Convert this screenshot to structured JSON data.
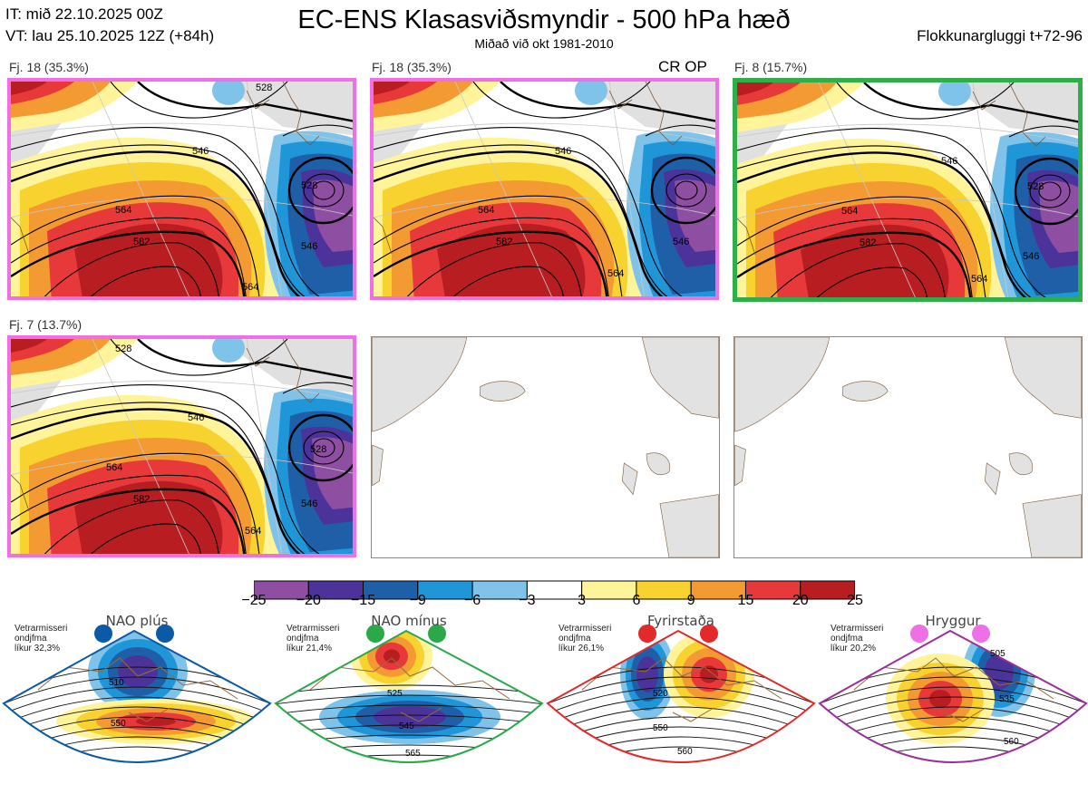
{
  "header": {
    "init_time": "IT: mið 22.10.2025 00Z",
    "valid_time": "VT: lau 25.10.2025 12Z  (+84h)",
    "title": "EC-ENS Klasasviðsmyndir - 500 hPa hæð",
    "subtitle": "Miðað við okt 1981-2010",
    "window": "Flokkunargluggi t+72-96"
  },
  "panels": [
    {
      "label": "Fj. 18 (35.3%)",
      "tag": "",
      "contours": [
        "528",
        "546",
        "564",
        "582",
        "528",
        "546",
        "564"
      ]
    },
    {
      "label": "Fj. 18 (35.3%)",
      "tag": "CR OP",
      "contours": [
        "546",
        "564",
        "582",
        "546",
        "564"
      ]
    },
    {
      "label": "Fj. 8 (15.7%)",
      "tag": "",
      "contours": [
        "528",
        "546",
        "564",
        "582",
        "546",
        "564"
      ]
    },
    {
      "label": "Fj. 7 (13.7%)",
      "tag": "",
      "contours": [
        "528",
        "546",
        "564",
        "582",
        "528",
        "546",
        "564"
      ]
    }
  ],
  "chart_data": {
    "type": "heatmap",
    "title": "EC-ENS Klasasviðsmyndir - 500 hPa hæð",
    "subtitle": "Miðað við okt 1981-2010",
    "variable": "500 hPa height anomaly",
    "colorbar": {
      "ticks": [
        "−25",
        "−20",
        "−15",
        "−9",
        "−6",
        "−3",
        "3",
        "6",
        "9",
        "15",
        "20",
        "25"
      ],
      "bounds": [
        -25,
        -20,
        -15,
        -9,
        -6,
        -3,
        3,
        6,
        9,
        15,
        20,
        25
      ],
      "colors": [
        "#8e4fa3",
        "#4c3399",
        "#1f5fa8",
        "#1f96d8",
        "#7fc3ea",
        "#ffffff",
        "#fff49a",
        "#f8d22e",
        "#f39a33",
        "#e8393a",
        "#b81d21"
      ]
    },
    "clusters": [
      {
        "name": "Fj. 18",
        "percent": 35.3,
        "cluster_number": 18
      },
      {
        "name": "Fj. 8",
        "percent": 15.7,
        "cluster_number": 8
      },
      {
        "name": "Fj. 7",
        "percent": 13.7,
        "cluster_number": 7
      }
    ]
  },
  "regimes": [
    {
      "name": "NAO plús",
      "meta": [
        "Vetrarmisseri",
        "ondjfma",
        "líkur 32,3%"
      ],
      "contours": [
        "510",
        "550"
      ],
      "color": "#0a5aa8"
    },
    {
      "name": "NAO mínus",
      "meta": [
        "Vetrarmisseri",
        "ondjfma",
        "líkur 21,4%"
      ],
      "contours": [
        "525",
        "545",
        "565"
      ],
      "color": "#2aa84a"
    },
    {
      "name": "Fyrirstaða",
      "meta": [
        "Vetrarmisseri",
        "ondjfma",
        "líkur 26,1%"
      ],
      "contours": [
        "520",
        "550",
        "560"
      ],
      "color": "#e32a2a"
    },
    {
      "name": "Hryggur",
      "meta": [
        "Vetrarmisseri",
        "ondjfma",
        "líkur 20,2%"
      ],
      "contours": [
        "505",
        "535",
        "560"
      ],
      "color": "#9b2f9b"
    }
  ]
}
